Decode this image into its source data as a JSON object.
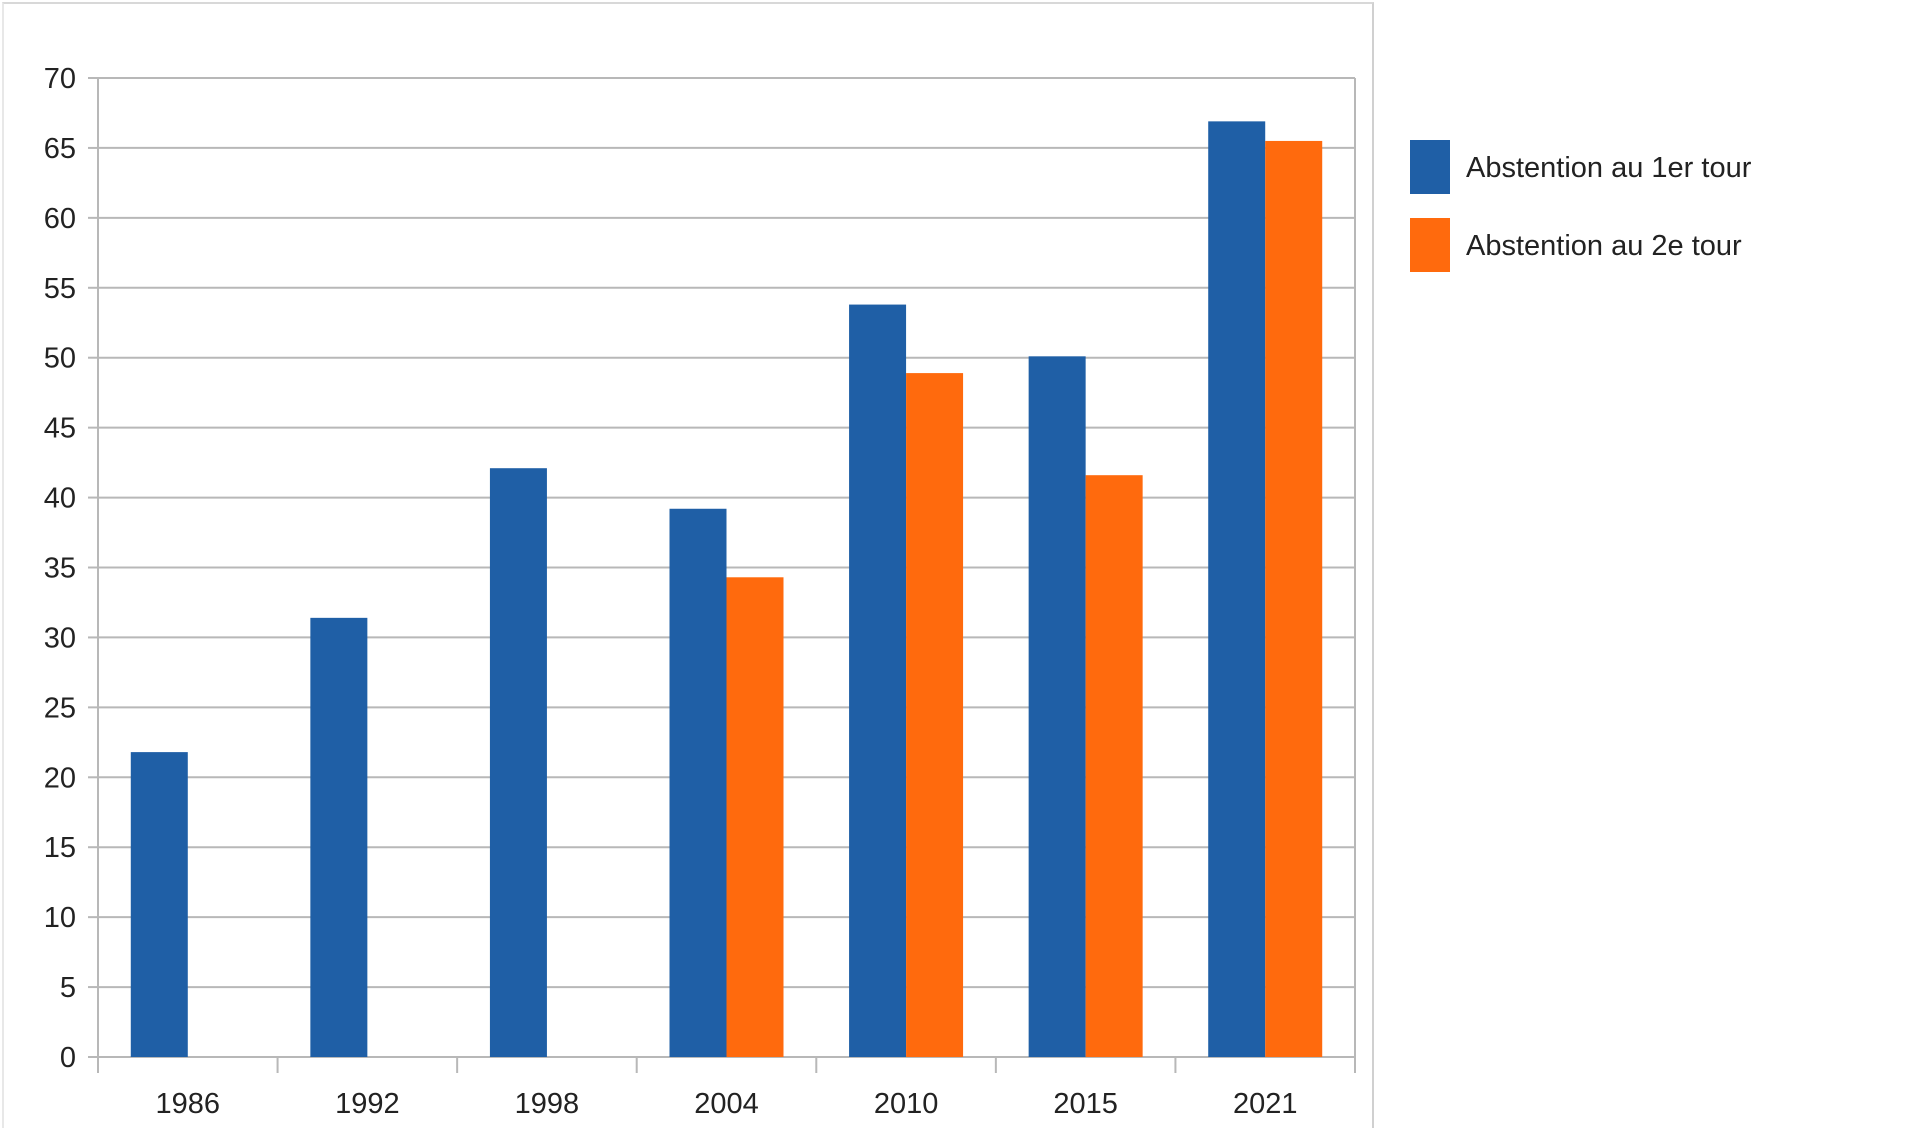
{
  "chart_data": {
    "type": "bar",
    "title": "",
    "xlabel": "",
    "ylabel": "",
    "categories": [
      "1986",
      "1992",
      "1998",
      "2004",
      "2010",
      "2015",
      "2021"
    ],
    "series": [
      {
        "name": "Abstention au 1er tour",
        "color": "#1f5fa6",
        "values": [
          21.8,
          31.4,
          42.1,
          39.2,
          53.8,
          50.1,
          66.9
        ]
      },
      {
        "name": "Abstention au 2e tour",
        "color": "#ff6a0d",
        "values": [
          null,
          null,
          null,
          34.3,
          48.9,
          41.6,
          65.5
        ]
      }
    ],
    "ylim": [
      0,
      70
    ],
    "yticks": [
      0,
      5,
      10,
      15,
      20,
      25,
      30,
      35,
      40,
      45,
      50,
      55,
      60,
      65,
      70
    ],
    "grid": true,
    "legend_position": "right"
  }
}
